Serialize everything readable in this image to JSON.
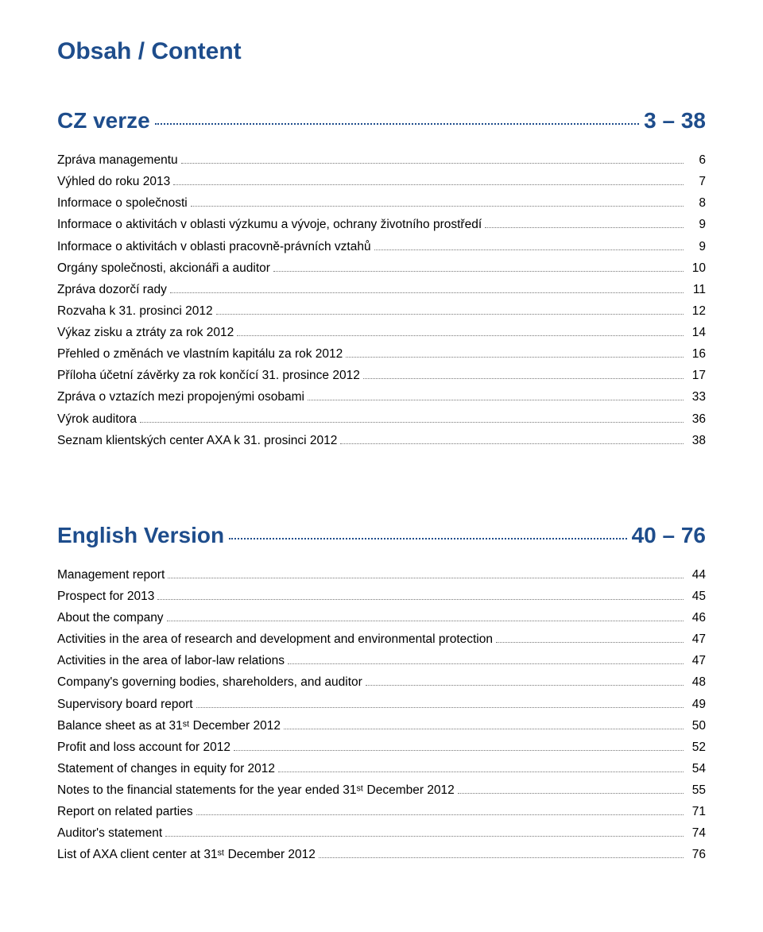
{
  "colors": {
    "heading": "#1e4d8c",
    "text": "#000000",
    "dots_heading": "#1e4d8c",
    "dots_body": "#777777",
    "background": "#ffffff"
  },
  "typography": {
    "main_title_fontsize": 30,
    "section_title_fontsize": 28,
    "body_fontsize": 15.5,
    "line_height": 1.75,
    "font_family": "Arial, Helvetica, sans-serif"
  },
  "mainTitle": "Obsah / Content",
  "czSection": {
    "title": "CZ verze",
    "pageRange": "3 – 38",
    "items": [
      {
        "label": "Zpráva managementu",
        "page": "6"
      },
      {
        "label": "Výhled do roku 2013",
        "page": "7"
      },
      {
        "label": "Informace o společnosti",
        "page": "8"
      },
      {
        "label": "Informace o aktivitách v oblasti výzkumu a vývoje, ochrany životního prostředí",
        "page": "9"
      },
      {
        "label": "Informace o aktivitách v oblasti pracovně-právních vztahů",
        "page": "9"
      },
      {
        "label": "Orgány společnosti, akcionáři a auditor",
        "page": "10"
      },
      {
        "label": "Zpráva dozorčí rady",
        "page": "11"
      },
      {
        "label": "Rozvaha k 31. prosinci 2012",
        "page": "12"
      },
      {
        "label": "Výkaz zisku a ztráty za rok 2012",
        "page": "14"
      },
      {
        "label": "Přehled o změnách ve vlastním kapitálu za rok 2012",
        "page": "16"
      },
      {
        "label": "Příloha účetní závěrky za rok končící 31. prosince 2012",
        "page": "17"
      },
      {
        "label": "Zpráva o vztazích mezi propojenými osobami",
        "page": "33"
      },
      {
        "label": "Výrok auditora",
        "page": "36"
      },
      {
        "label": "Seznam klientských center AXA k 31. prosinci 2012",
        "page": "38"
      }
    ]
  },
  "enSection": {
    "title": "English Version",
    "pageRange": "40 – 76",
    "items": [
      {
        "label": "Management report",
        "page": "44"
      },
      {
        "label": "Prospect for 2013",
        "page": "45"
      },
      {
        "label": "About the company",
        "page": "46"
      },
      {
        "label": "Activities in the area of research and development and environmental protection",
        "page": "47"
      },
      {
        "label": "Activities in the area of labor-law relations",
        "page": "47"
      },
      {
        "label": "Company's governing bodies, shareholders, and auditor",
        "page": "48"
      },
      {
        "label": "Supervisory board report",
        "page": "49"
      },
      {
        "label": "Balance sheet as at 31ˢᵗ December 2012",
        "page": "50"
      },
      {
        "label": "Profit and loss account for 2012",
        "page": "52"
      },
      {
        "label": "Statement of changes in equity for 2012",
        "page": "54"
      },
      {
        "label": "Notes to the financial statements for the year ended 31ˢᵗ December 2012",
        "page": "55"
      },
      {
        "label": "Report on related parties",
        "page": "71"
      },
      {
        "label": "Auditor's statement",
        "page": "74"
      },
      {
        "label": "List of AXA client center at 31ˢᵗ December 2012",
        "page": "76"
      }
    ]
  }
}
